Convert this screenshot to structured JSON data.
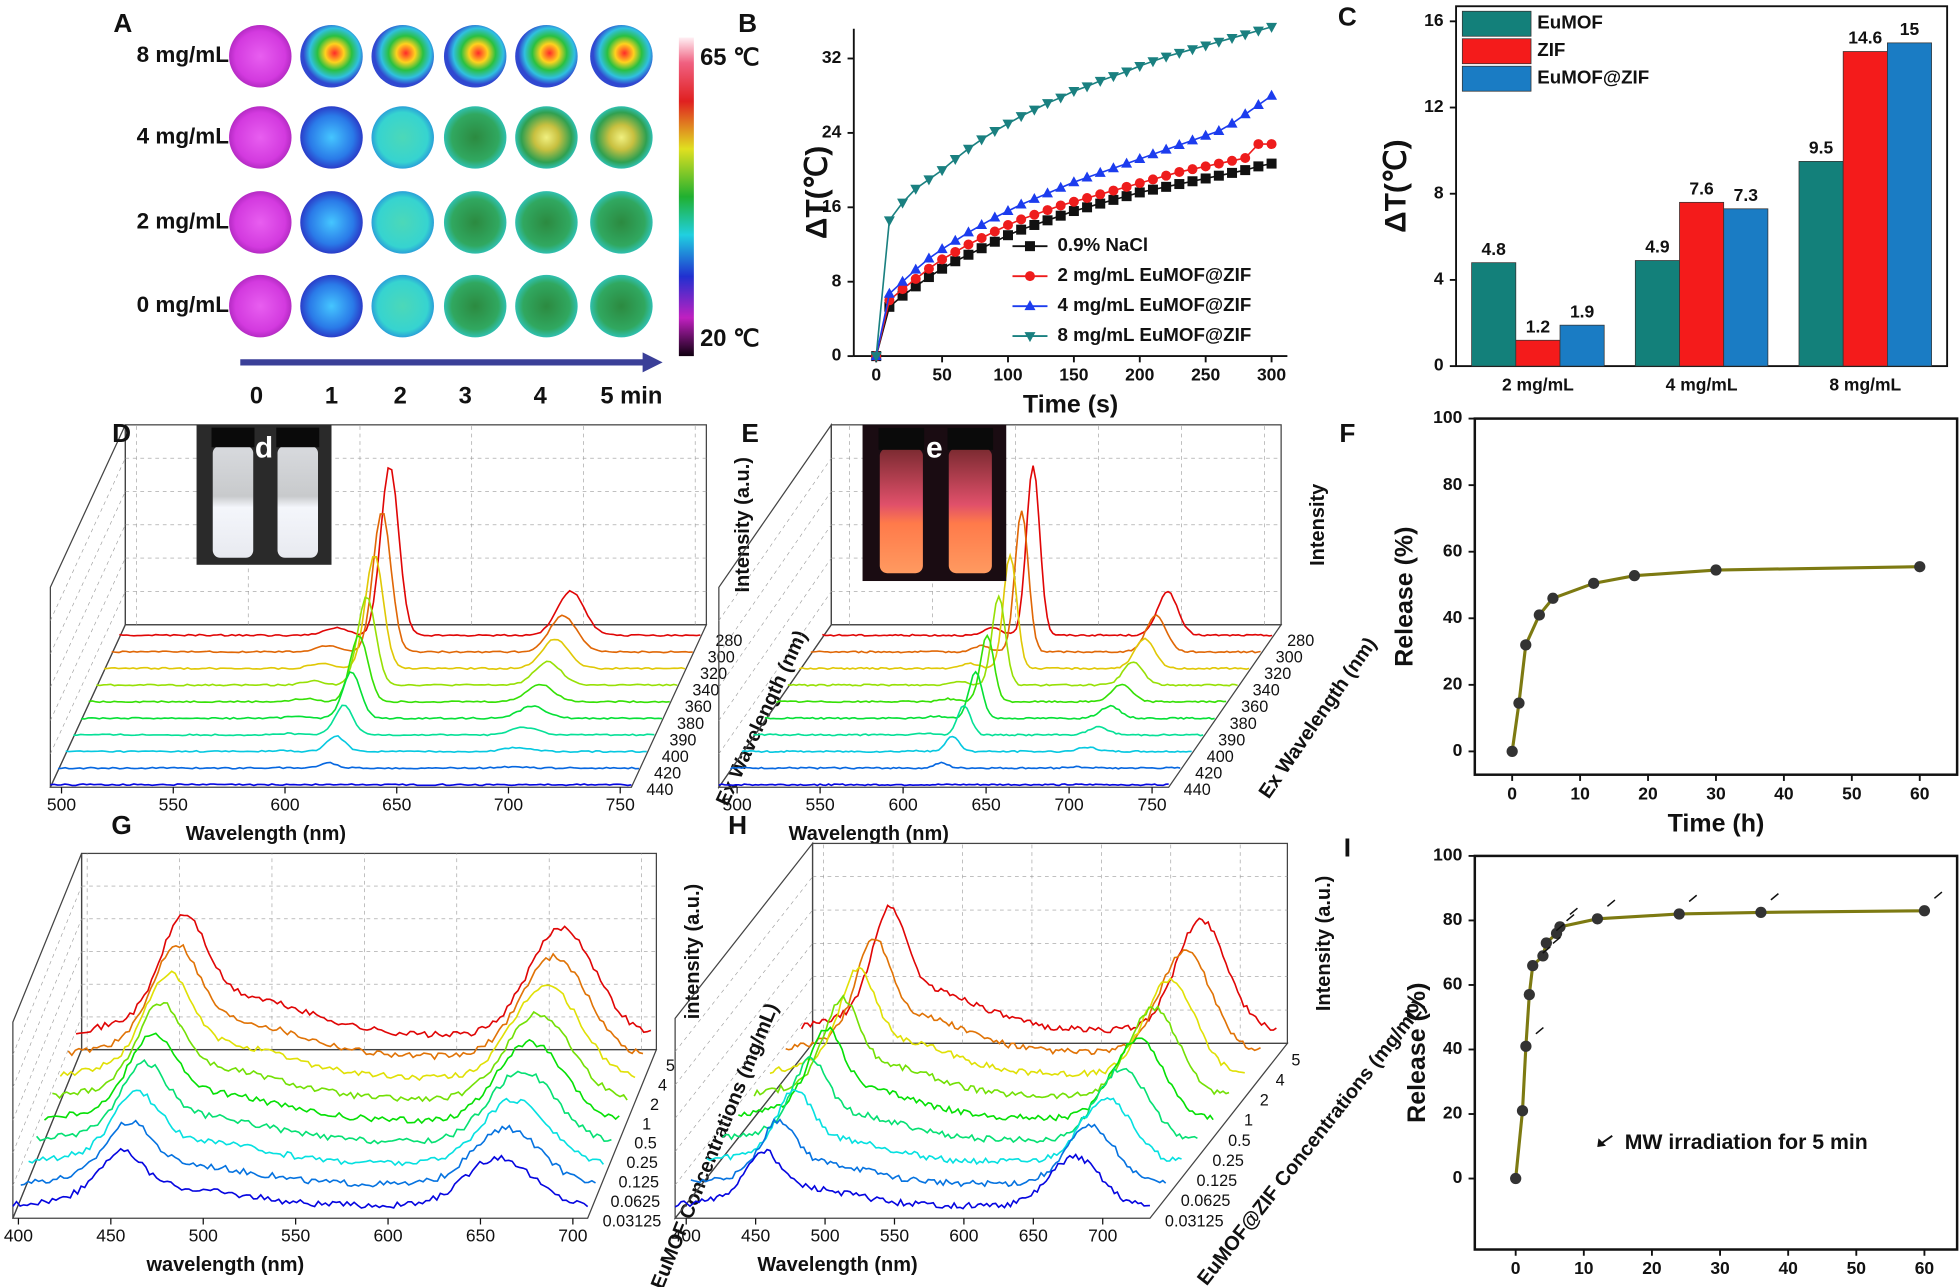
{
  "chart_data": [
    {
      "type": "thermal",
      "label": "A",
      "rows": [
        "8 mg/mL",
        "4 mg/mL",
        "2 mg/mL",
        "0 mg/mL"
      ],
      "columns": [
        "0",
        "1",
        "2",
        "3",
        "4",
        "5 min"
      ],
      "colorbar_labels": [
        "65 ℃",
        "20 ℃"
      ]
    },
    {
      "type": "line",
      "label": "B",
      "xlabel": "Time (s)",
      "ylabel": "ΔT(℃)",
      "xlim": [
        -17,
        312
      ],
      "ylim": [
        0,
        35.2
      ],
      "xticks": [
        0,
        50,
        100,
        150,
        200,
        250,
        300
      ],
      "yticks": [
        0,
        8,
        16,
        24,
        32
      ],
      "legend": "lower right",
      "x": [
        0,
        10,
        20,
        30,
        40,
        50,
        60,
        70,
        80,
        90,
        100,
        110,
        120,
        130,
        140,
        150,
        160,
        170,
        180,
        190,
        200,
        210,
        220,
        230,
        240,
        250,
        260,
        270,
        280,
        290,
        300
      ],
      "series": [
        {
          "name": "0.9% NaCl",
          "color": "#111111",
          "marker": "square",
          "values": [
            0,
            5.3,
            6.5,
            7.5,
            8.5,
            9.4,
            10.2,
            10.9,
            11.6,
            12.3,
            13,
            13.6,
            14.1,
            14.6,
            15.1,
            15.6,
            16,
            16.4,
            16.8,
            17.2,
            17.6,
            17.9,
            18.2,
            18.5,
            18.8,
            19.1,
            19.4,
            19.7,
            20,
            20.4,
            20.7
          ]
        },
        {
          "name": "2 mg/mL EuMOF@ZIF",
          "color": "#ee1c1c",
          "marker": "circle",
          "values": [
            0,
            6,
            7.2,
            8.3,
            9.4,
            10.4,
            11.2,
            12,
            12.7,
            13.4,
            14.1,
            14.7,
            15.2,
            15.7,
            16.2,
            16.6,
            17,
            17.4,
            17.8,
            18.2,
            18.6,
            19,
            19.4,
            19.8,
            20.1,
            20.4,
            20.7,
            21,
            21.3,
            22.8,
            22.8
          ]
        },
        {
          "name": "4 mg/mL EuMOF@ZIF",
          "color": "#1c3cee",
          "marker": "triangle-up",
          "values": [
            0,
            6.7,
            8,
            9.3,
            10.5,
            11.5,
            12.4,
            13.3,
            14.1,
            14.9,
            15.6,
            16.3,
            16.9,
            17.5,
            18.1,
            18.7,
            19.2,
            19.7,
            20.2,
            20.7,
            21.2,
            21.7,
            22.2,
            22.7,
            23.2,
            23.7,
            24.2,
            25,
            26,
            27,
            28
          ]
        },
        {
          "name": "8 mg/mL EuMOF@ZIF",
          "color": "#1a8080",
          "marker": "triangle-down",
          "values": [
            0,
            14.6,
            16.5,
            18,
            19,
            20,
            21.2,
            22.3,
            23.3,
            24.2,
            25,
            25.8,
            26.5,
            27.2,
            27.8,
            28.5,
            29,
            29.6,
            30.1,
            30.6,
            31.2,
            31.7,
            32.2,
            32.6,
            33,
            33.4,
            33.8,
            34.2,
            34.6,
            35,
            35.4
          ]
        }
      ]
    },
    {
      "type": "bar",
      "label": "C",
      "ylabel": "ΔT(℃)",
      "ylim": [
        0,
        16.7
      ],
      "yticks": [
        0,
        4,
        8,
        12,
        16
      ],
      "legend": "upper left",
      "categories": [
        "2 mg/mL",
        "4 mg/mL",
        "8 mg/mL"
      ],
      "series": [
        {
          "name": "EuMOF",
          "color": "#13807a",
          "values": [
            4.8,
            4.9,
            9.5
          ]
        },
        {
          "name": "ZIF",
          "color": "#f41b1b",
          "values": [
            1.2,
            7.6,
            14.6
          ]
        },
        {
          "name": "EuMOF@ZIF",
          "color": "#1a7cc4",
          "values": [
            1.9,
            7.3,
            15
          ]
        }
      ]
    },
    {
      "type": "spectra3d",
      "label": "D",
      "inset_label": "d",
      "xlabel": "Wavelength (nm)",
      "ylabel": "Intensity (a.u.)",
      "zlabel": "Ex Wavelength (nm)",
      "xlim": [
        495,
        755
      ],
      "xticks": [
        500,
        550,
        600,
        650,
        700,
        750
      ],
      "zticks": [
        280,
        300,
        320,
        340,
        360,
        380,
        390,
        400,
        420,
        440
      ]
    },
    {
      "type": "spectra3d",
      "label": "E",
      "inset_label": "e",
      "xlabel": "Wavelength (nm)",
      "ylabel": "Intensity",
      "zlabel": "Ex Wavelength (nm)",
      "xlim": [
        489,
        760
      ],
      "xticks": [
        500,
        550,
        600,
        650,
        700,
        750
      ],
      "zticks": [
        280,
        300,
        320,
        340,
        360,
        380,
        390,
        400,
        420,
        440
      ]
    },
    {
      "type": "line",
      "label": "F",
      "xlabel": "Time (h)",
      "ylabel": "Release (%)",
      "xlim": [
        -5.5,
        65.5
      ],
      "ylim": [
        -7,
        100
      ],
      "xticks": [
        0,
        10,
        20,
        30,
        40,
        50,
        60
      ],
      "yticks": [
        0,
        20,
        40,
        60,
        80,
        100
      ],
      "color": "#7d7a12",
      "marker": "circle",
      "marker_color": "#333333",
      "x": [
        0,
        1,
        2,
        4,
        6,
        12,
        18,
        30,
        60
      ],
      "values": [
        0,
        14.5,
        32,
        41,
        46,
        50.5,
        52.8,
        54.5,
        55.5
      ]
    },
    {
      "type": "spectra3d",
      "label": "G",
      "xlabel": "wavelength (nm)",
      "ylabel": "intensity (a.u.)",
      "zlabel": "EuMOF Concentrations (mg/mL)",
      "xlim": [
        397,
        708
      ],
      "xticks": [
        400,
        450,
        500,
        550,
        600,
        650,
        700
      ],
      "zticks": [
        5,
        4,
        2,
        1,
        0.5,
        0.25,
        0.125,
        0.0625,
        0.03125
      ]
    },
    {
      "type": "spectra3d",
      "label": "H",
      "xlabel": "Wavelength (nm)",
      "ylabel": "Intensity (a.u.)",
      "zlabel": "EuMOF@ZIF Concentrations (mg/mL)",
      "xlim": [
        392,
        734
      ],
      "xticks": [
        400,
        450,
        500,
        550,
        600,
        650,
        700
      ],
      "zticks": [
        5,
        4,
        2,
        1,
        0.5,
        0.25,
        0.125,
        0.0625,
        0.03125
      ]
    },
    {
      "type": "line",
      "label": "I",
      "xlabel": "Time (h)",
      "ylabel": "Release (%)",
      "annotation": "MW irradiation for 5 min",
      "xlim": [
        -6,
        64.8
      ],
      "ylim": [
        -22,
        100
      ],
      "xticks": [
        0,
        10,
        20,
        30,
        40,
        50,
        60
      ],
      "yticks": [
        0,
        20,
        40,
        60,
        80,
        100
      ],
      "color": "#7d7a12",
      "marker": "circle",
      "marker_color": "#333333",
      "x": [
        0,
        1,
        1.5,
        2,
        2.5,
        4,
        4.5,
        6,
        6.5,
        12,
        24,
        36,
        60
      ],
      "values": [
        0,
        21,
        41,
        57,
        66,
        69,
        73,
        76,
        78,
        80.5,
        82,
        82.5,
        83
      ]
    }
  ]
}
